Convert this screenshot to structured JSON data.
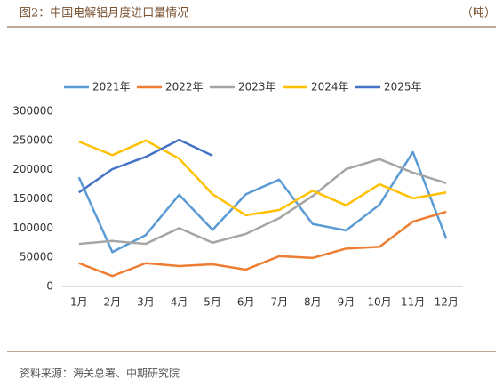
{
  "chart_data": {
    "type": "line",
    "title": "图2：中国电解铝月度进口量情况",
    "unit": "（吨）",
    "source": "资料来源：海关总署、中期研究院",
    "categories": [
      "1月",
      "2月",
      "3月",
      "4月",
      "5月",
      "6月",
      "7月",
      "8月",
      "9月",
      "10月",
      "11月",
      "12月"
    ],
    "series": [
      {
        "name": "2021年",
        "color": "#5b9bd5",
        "values": [
          187000,
          59000,
          88000,
          157000,
          97000,
          158000,
          183000,
          107000,
          96000,
          140000,
          230000,
          82000
        ]
      },
      {
        "name": "2022年",
        "color": "#ed7d31",
        "values": [
          40000,
          18000,
          40000,
          35000,
          38000,
          29000,
          52000,
          49000,
          65000,
          68000,
          111000,
          128000
        ]
      },
      {
        "name": "2023年",
        "color": "#a5a5a5",
        "values": [
          73000,
          78000,
          73000,
          100000,
          75000,
          90000,
          117000,
          155000,
          201000,
          218000,
          195000,
          177000
        ]
      },
      {
        "name": "2024年",
        "color": "#ffc000",
        "values": [
          248000,
          225000,
          250000,
          219000,
          158000,
          122000,
          131000,
          164000,
          139000,
          175000,
          151000,
          161000
        ]
      },
      {
        "name": "2025年",
        "color": "#4472c4",
        "values": [
          161000,
          201000,
          222000,
          251000,
          224000,
          null,
          null,
          null,
          null,
          null,
          null,
          null
        ]
      }
    ],
    "ylim": [
      0,
      300000
    ],
    "yticks": [
      0,
      50000,
      100000,
      150000,
      200000,
      250000,
      300000
    ],
    "grid": false,
    "legend": "top"
  }
}
